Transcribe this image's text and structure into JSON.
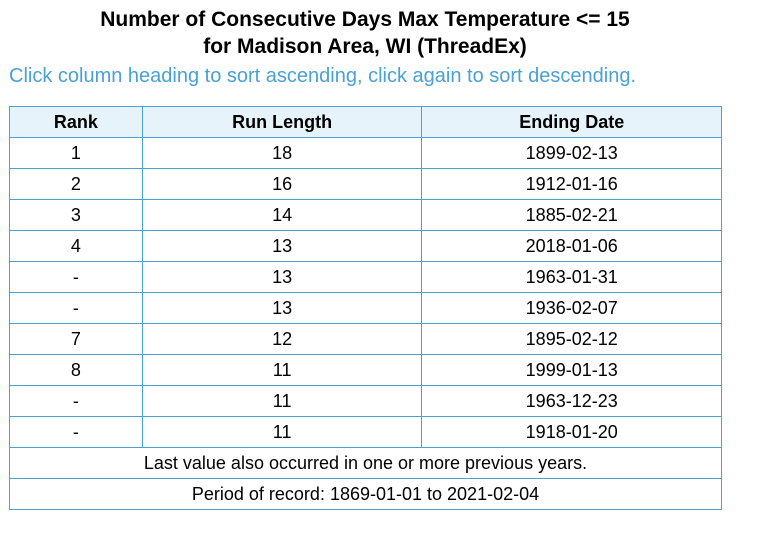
{
  "title": {
    "line1": "Number of Consecutive Days Max Temperature <= 15",
    "line2": "for Madison Area, WI (ThreadEx)"
  },
  "instructions": "Click column heading to sort ascending, click again to sort descending.",
  "table": {
    "headers": [
      "Rank",
      "Run Length",
      "Ending Date"
    ],
    "rows": [
      [
        "1",
        "18",
        "1899-02-13"
      ],
      [
        "2",
        "16",
        "1912-01-16"
      ],
      [
        "3",
        "14",
        "1885-02-21"
      ],
      [
        "4",
        "13",
        "2018-01-06"
      ],
      [
        "-",
        "13",
        "1963-01-31"
      ],
      [
        "-",
        "13",
        "1936-02-07"
      ],
      [
        "7",
        "12",
        "1895-02-12"
      ],
      [
        "8",
        "11",
        "1999-01-13"
      ],
      [
        "-",
        "11",
        "1963-12-23"
      ],
      [
        "-",
        "11",
        "1918-01-20"
      ]
    ],
    "footnote": "Last value also occurred in one or more previous years.",
    "period": "Period of record: 1869-01-01 to 2021-02-04"
  },
  "colors": {
    "border": "#4aa1d4",
    "header_bg": "#e7f3fb",
    "instructions": "#4aa1d4"
  }
}
